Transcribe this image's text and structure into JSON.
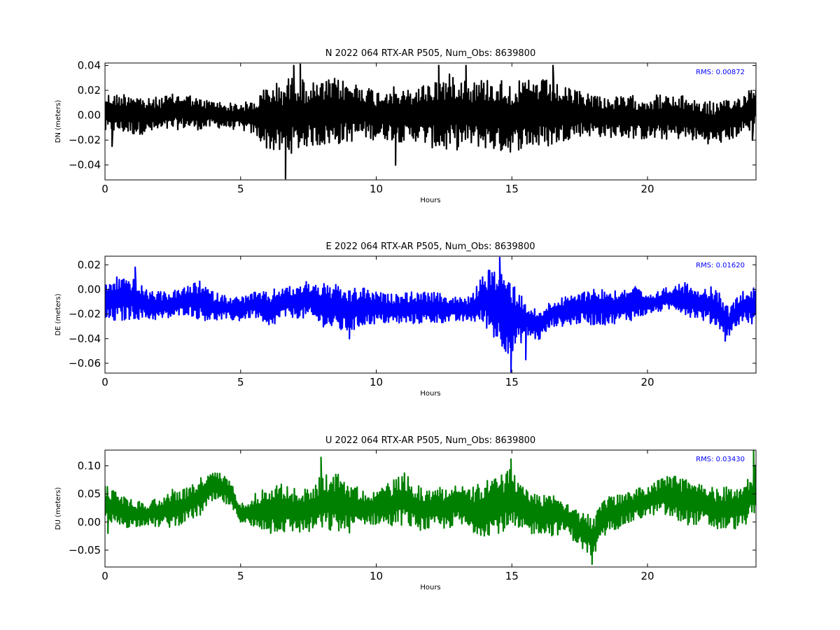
{
  "chart_data": [
    {
      "type": "line",
      "title": "N 2022 064 RTX-AR  P505, Num_Obs: 8639800",
      "xlabel": "Hours",
      "ylabel": "DN (meters)",
      "xlim": [
        0,
        24
      ],
      "ylim": [
        -0.052,
        0.042
      ],
      "xticks": [
        0,
        5,
        10,
        15,
        20
      ],
      "yticks": [
        -0.04,
        -0.02,
        0.0,
        0.02,
        0.04
      ],
      "ytick_labels": [
        "−0.04",
        "−0.02",
        "0.00",
        "0.02",
        "0.04"
      ],
      "grid": false,
      "annotation": "RMS:  0.00872",
      "annotation_color": "#0000ff",
      "series": [
        {
          "color": "#000000",
          "x": [
            0,
            0.5,
            1,
            1.5,
            2,
            2.5,
            3,
            3.5,
            4,
            4.5,
            5,
            5.5,
            6,
            6.5,
            7,
            7.5,
            8,
            8.5,
            9,
            9.5,
            10,
            10.5,
            11,
            11.5,
            12,
            12.5,
            13,
            13.5,
            14,
            14.5,
            15,
            15.5,
            16,
            16.5,
            17,
            17.5,
            18,
            18.5,
            19,
            19.5,
            20,
            20.5,
            21,
            21.5,
            22,
            22.5,
            23,
            23.5,
            24
          ],
          "upper": [
            0.018,
            0.017,
            0.02,
            0.013,
            0.015,
            0.017,
            0.018,
            0.013,
            0.012,
            0.01,
            0.01,
            0.012,
            0.025,
            0.027,
            0.033,
            0.026,
            0.027,
            0.03,
            0.027,
            0.026,
            0.02,
            0.024,
            0.02,
            0.023,
            0.028,
            0.032,
            0.035,
            0.028,
            0.03,
            0.03,
            0.027,
            0.028,
            0.03,
            0.027,
            0.022,
            0.02,
            0.018,
            0.015,
            0.015,
            0.016,
            0.016,
            0.017,
            0.015,
            0.016,
            0.012,
            0.011,
            0.012,
            0.017,
            0.027
          ],
          "lower": [
            -0.015,
            -0.014,
            -0.016,
            -0.015,
            -0.014,
            -0.012,
            -0.011,
            -0.012,
            -0.01,
            -0.011,
            -0.012,
            -0.016,
            -0.028,
            -0.032,
            -0.03,
            -0.025,
            -0.025,
            -0.024,
            -0.022,
            -0.019,
            -0.02,
            -0.02,
            -0.022,
            -0.021,
            -0.026,
            -0.03,
            -0.028,
            -0.025,
            -0.027,
            -0.03,
            -0.03,
            -0.026,
            -0.027,
            -0.025,
            -0.02,
            -0.017,
            -0.017,
            -0.018,
            -0.018,
            -0.019,
            -0.02,
            -0.02,
            -0.019,
            -0.02,
            -0.022,
            -0.024,
            -0.021,
            -0.015,
            -0.012
          ],
          "spikes": [
            {
              "x": 6.65,
              "y": -0.051
            },
            {
              "x": 6.95,
              "y": 0.04
            },
            {
              "x": 7.2,
              "y": 0.041
            },
            {
              "x": 10.7,
              "y": -0.04
            },
            {
              "x": 12.3,
              "y": 0.04
            },
            {
              "x": 13.3,
              "y": 0.04
            },
            {
              "x": 16.5,
              "y": 0.04
            },
            {
              "x": 0.25,
              "y": -0.025
            },
            {
              "x": 23.85,
              "y": -0.02
            }
          ]
        }
      ]
    },
    {
      "type": "line",
      "title": "E 2022 064 RTX-AR  P505, Num_Obs: 8639800",
      "xlabel": "Hours",
      "ylabel": "DE (meters)",
      "xlim": [
        0,
        24
      ],
      "ylim": [
        -0.068,
        0.027
      ],
      "xticks": [
        0,
        5,
        10,
        15,
        20
      ],
      "yticks": [
        -0.06,
        -0.04,
        -0.02,
        0.0,
        0.02
      ],
      "ytick_labels": [
        "−0.06",
        "−0.04",
        "−0.02",
        "0.00",
        "0.02"
      ],
      "grid": false,
      "annotation": "RMS:  0.01620",
      "annotation_color": "#0000ff",
      "series": [
        {
          "color": "#0000ff",
          "x": [
            0,
            0.5,
            1,
            1.5,
            2,
            2.5,
            3,
            3.5,
            4,
            4.5,
            5,
            5.5,
            6,
            6.5,
            7,
            7.5,
            8,
            8.5,
            9,
            9.5,
            10,
            10.5,
            11,
            11.5,
            12,
            12.5,
            13,
            13.5,
            14,
            14.5,
            15,
            15.5,
            16,
            16.5,
            17,
            17.5,
            18,
            18.5,
            19,
            19.5,
            20,
            20.5,
            21,
            21.5,
            22,
            22.5,
            23,
            23.5,
            24
          ],
          "upper": [
            0.005,
            0.012,
            0.01,
            0.0,
            -0.002,
            -0.001,
            0.002,
            0.007,
            -0.002,
            -0.005,
            -0.006,
            -0.002,
            -0.002,
            0.003,
            0.002,
            0.008,
            0.005,
            0.004,
            0.0,
            0.002,
            -0.002,
            -0.004,
            -0.002,
            -0.002,
            -0.002,
            -0.004,
            -0.006,
            -0.006,
            0.015,
            0.018,
            0.01,
            -0.01,
            -0.018,
            -0.008,
            -0.006,
            -0.002,
            0.002,
            0.0,
            0.0,
            0.004,
            -0.006,
            0.0,
            0.004,
            0.006,
            0.002,
            0.002,
            -0.015,
            0.0,
            0.002
          ],
          "lower": [
            -0.027,
            -0.027,
            -0.024,
            -0.025,
            -0.025,
            -0.024,
            -0.02,
            -0.025,
            -0.026,
            -0.025,
            -0.026,
            -0.022,
            -0.035,
            -0.024,
            -0.023,
            -0.025,
            -0.03,
            -0.034,
            -0.036,
            -0.03,
            -0.028,
            -0.028,
            -0.029,
            -0.028,
            -0.028,
            -0.027,
            -0.027,
            -0.026,
            -0.03,
            -0.045,
            -0.055,
            -0.038,
            -0.042,
            -0.03,
            -0.03,
            -0.028,
            -0.029,
            -0.029,
            -0.027,
            -0.025,
            -0.02,
            -0.018,
            -0.016,
            -0.022,
            -0.025,
            -0.03,
            -0.038,
            -0.026,
            -0.03
          ],
          "spikes": [
            {
              "x": 14.95,
              "y": -0.067
            },
            {
              "x": 14.55,
              "y": 0.026
            },
            {
              "x": 1.1,
              "y": 0.018
            },
            {
              "x": 15.5,
              "y": -0.057
            },
            {
              "x": 9.0,
              "y": -0.04
            },
            {
              "x": 22.85,
              "y": -0.042
            }
          ]
        }
      ]
    },
    {
      "type": "line",
      "title": "U 2022 064 RTX-AR  P505, Num_Obs: 8639800",
      "xlabel": "Hours",
      "ylabel": "DU (meters)",
      "xlim": [
        0,
        24
      ],
      "ylim": [
        -0.08,
        0.128
      ],
      "xticks": [
        0,
        5,
        10,
        15,
        20
      ],
      "yticks": [
        -0.05,
        0.0,
        0.05,
        0.1
      ],
      "ytick_labels": [
        "−0.05",
        "0.00",
        "0.05",
        "0.10"
      ],
      "grid": false,
      "annotation": "RMS:  0.03430",
      "annotation_color": "#0000ff",
      "series": [
        {
          "color": "#008000",
          "x": [
            0,
            0.5,
            1,
            1.5,
            2,
            2.5,
            3,
            3.5,
            4,
            4.5,
            5,
            5.5,
            6,
            6.5,
            7,
            7.5,
            8,
            8.5,
            9,
            9.5,
            10,
            10.5,
            11,
            11.5,
            12,
            12.5,
            13,
            13.5,
            14,
            14.5,
            15,
            15.5,
            16,
            16.5,
            17,
            17.5,
            18,
            18.5,
            19,
            19.5,
            20,
            20.5,
            21,
            21.5,
            22,
            22.5,
            23,
            23.5,
            24
          ],
          "upper": [
            0.065,
            0.055,
            0.04,
            0.035,
            0.045,
            0.06,
            0.06,
            0.08,
            0.09,
            0.085,
            0.035,
            0.05,
            0.065,
            0.07,
            0.06,
            0.06,
            0.085,
            0.09,
            0.075,
            0.055,
            0.06,
            0.07,
            0.09,
            0.065,
            0.06,
            0.065,
            0.07,
            0.06,
            0.075,
            0.08,
            0.1,
            0.06,
            0.05,
            0.055,
            0.04,
            0.02,
            0.01,
            0.045,
            0.05,
            0.06,
            0.065,
            0.08,
            0.085,
            0.075,
            0.07,
            0.06,
            0.065,
            0.06,
            0.105
          ],
          "lower": [
            -0.005,
            -0.01,
            -0.01,
            -0.005,
            -0.01,
            -0.01,
            0.0,
            0.01,
            0.035,
            0.03,
            0.0,
            -0.015,
            -0.015,
            -0.02,
            -0.02,
            -0.02,
            -0.015,
            -0.02,
            -0.02,
            -0.005,
            -0.005,
            -0.01,
            -0.005,
            -0.015,
            -0.015,
            -0.015,
            -0.005,
            -0.02,
            -0.025,
            -0.02,
            -0.02,
            -0.025,
            -0.02,
            -0.025,
            -0.02,
            -0.045,
            -0.065,
            -0.02,
            -0.01,
            0.0,
            0.01,
            0.015,
            0.0,
            -0.005,
            -0.005,
            -0.015,
            -0.015,
            -0.01,
            0.01
          ],
          "spikes": [
            {
              "x": 17.95,
              "y": -0.075
            },
            {
              "x": 7.95,
              "y": 0.115
            },
            {
              "x": 14.95,
              "y": 0.112
            },
            {
              "x": 23.9,
              "y": 0.128
            },
            {
              "x": 0.1,
              "y": -0.02
            },
            {
              "x": 6.1,
              "y": -0.02
            }
          ]
        }
      ]
    }
  ]
}
